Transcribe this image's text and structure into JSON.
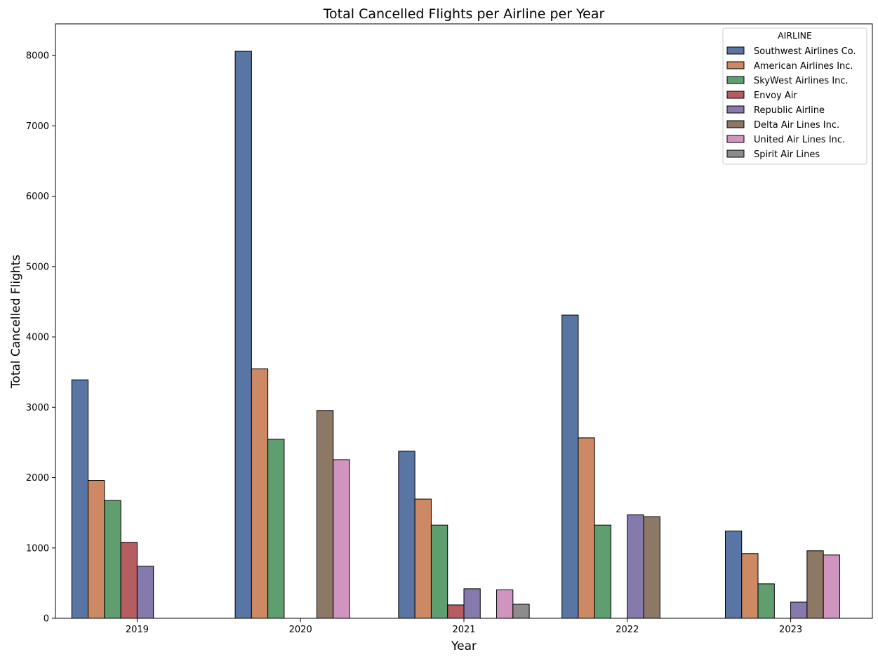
{
  "chart_data": {
    "type": "bar",
    "title": "Total Cancelled Flights per Airline per Year",
    "xlabel": "Year",
    "ylabel": "Total Cancelled Flights",
    "categories": [
      "2019",
      "2020",
      "2021",
      "2022",
      "2023"
    ],
    "yticks": [
      "0",
      "1000",
      "2000",
      "3000",
      "4000",
      "5000",
      "6000",
      "7000",
      "8000"
    ],
    "ylim": [
      0,
      8450
    ],
    "grid": false,
    "legend": {
      "title": "AIRLINE",
      "placement": "top-right"
    },
    "series": [
      {
        "name": "Southwest Airlines Co.",
        "color": "#5875a4",
        "values": [
          3390,
          8060,
          2375,
          4310,
          1240
        ]
      },
      {
        "name": "American Airlines Inc.",
        "color": "#cc8963",
        "values": [
          1960,
          3545,
          1695,
          2565,
          920
        ]
      },
      {
        "name": "SkyWest Airlines Inc.",
        "color": "#5f9e6e",
        "values": [
          1675,
          2545,
          1325,
          1325,
          490
        ]
      },
      {
        "name": "Envoy Air",
        "color": "#b55d60",
        "values": [
          1080,
          null,
          190,
          null,
          null
        ]
      },
      {
        "name": "Republic Airline",
        "color": "#857aab",
        "values": [
          740,
          null,
          420,
          1470,
          230
        ]
      },
      {
        "name": "Delta Air Lines Inc.",
        "color": "#8d7866",
        "values": [
          null,
          2955,
          null,
          1445,
          960
        ]
      },
      {
        "name": "United Air Lines Inc.",
        "color": "#d095bf",
        "values": [
          null,
          2255,
          405,
          null,
          900
        ]
      },
      {
        "name": "Spirit Air Lines",
        "color": "#8c8c8c",
        "values": [
          null,
          null,
          200,
          null,
          null
        ]
      }
    ]
  }
}
